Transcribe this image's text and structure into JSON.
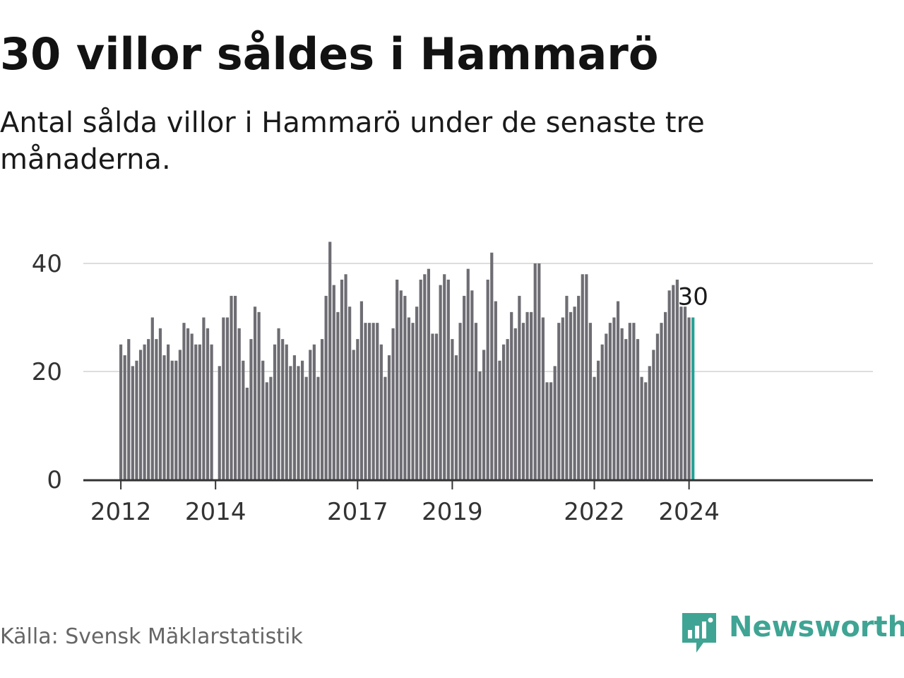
{
  "title": "30 villor såldes i Hammarö",
  "subtitle": "Antal sålda villor i Hammarö under de senaste tre månaderna.",
  "source": "Källa: Svensk Mäklarstatistik",
  "brand": {
    "name": "Newsworthy",
    "color": "#3fa494",
    "icon": "newsworthy-logo-icon"
  },
  "colors": {
    "bar": "#6e6d73",
    "highlight": "#23a396",
    "grid": "#dddddd",
    "axis": "#333333"
  },
  "chart_data": {
    "type": "bar",
    "title": "30 villor såldes i Hammarö",
    "xlabel": "",
    "ylabel": "",
    "ylim": [
      0,
      45
    ],
    "y_ticks": [
      0,
      20,
      40
    ],
    "y_tick_labels": [
      "0",
      "20",
      "40"
    ],
    "grid": true,
    "start": "2012-01",
    "frequency": "monthly",
    "x_ticks": [
      {
        "label": "2012",
        "index": 0
      },
      {
        "label": "2014",
        "index": 24
      },
      {
        "label": "2017",
        "index": 60
      },
      {
        "label": "2019",
        "index": 84
      },
      {
        "label": "2022",
        "index": 120
      },
      {
        "label": "2024",
        "index": 144
      }
    ],
    "values": [
      25,
      23,
      26,
      21,
      22,
      24,
      25,
      26,
      30,
      26,
      28,
      23,
      25,
      22,
      22,
      24,
      29,
      28,
      27,
      25,
      25,
      30,
      28,
      25,
      null,
      21,
      30,
      30,
      34,
      34,
      28,
      22,
      17,
      26,
      32,
      31,
      22,
      18,
      19,
      25,
      28,
      26,
      25,
      21,
      23,
      21,
      22,
      19,
      24,
      25,
      19,
      26,
      34,
      44,
      36,
      31,
      37,
      38,
      32,
      24,
      26,
      33,
      29,
      29,
      29,
      29,
      25,
      19,
      23,
      28,
      37,
      35,
      34,
      30,
      29,
      32,
      37,
      38,
      39,
      27,
      27,
      36,
      38,
      37,
      26,
      23,
      29,
      34,
      39,
      35,
      29,
      20,
      24,
      37,
      42,
      33,
      22,
      25,
      26,
      31,
      28,
      34,
      29,
      31,
      31,
      40,
      40,
      30,
      18,
      18,
      21,
      29,
      30,
      34,
      31,
      32,
      34,
      38,
      38,
      29,
      19,
      22,
      25,
      27,
      29,
      30,
      33,
      28,
      26,
      29,
      29,
      26,
      19,
      18,
      21,
      24,
      27,
      29,
      31,
      35,
      36,
      37,
      32,
      32,
      30,
      30
    ],
    "highlight_index": 145,
    "annotation": {
      "index": 145,
      "text": "30"
    }
  }
}
